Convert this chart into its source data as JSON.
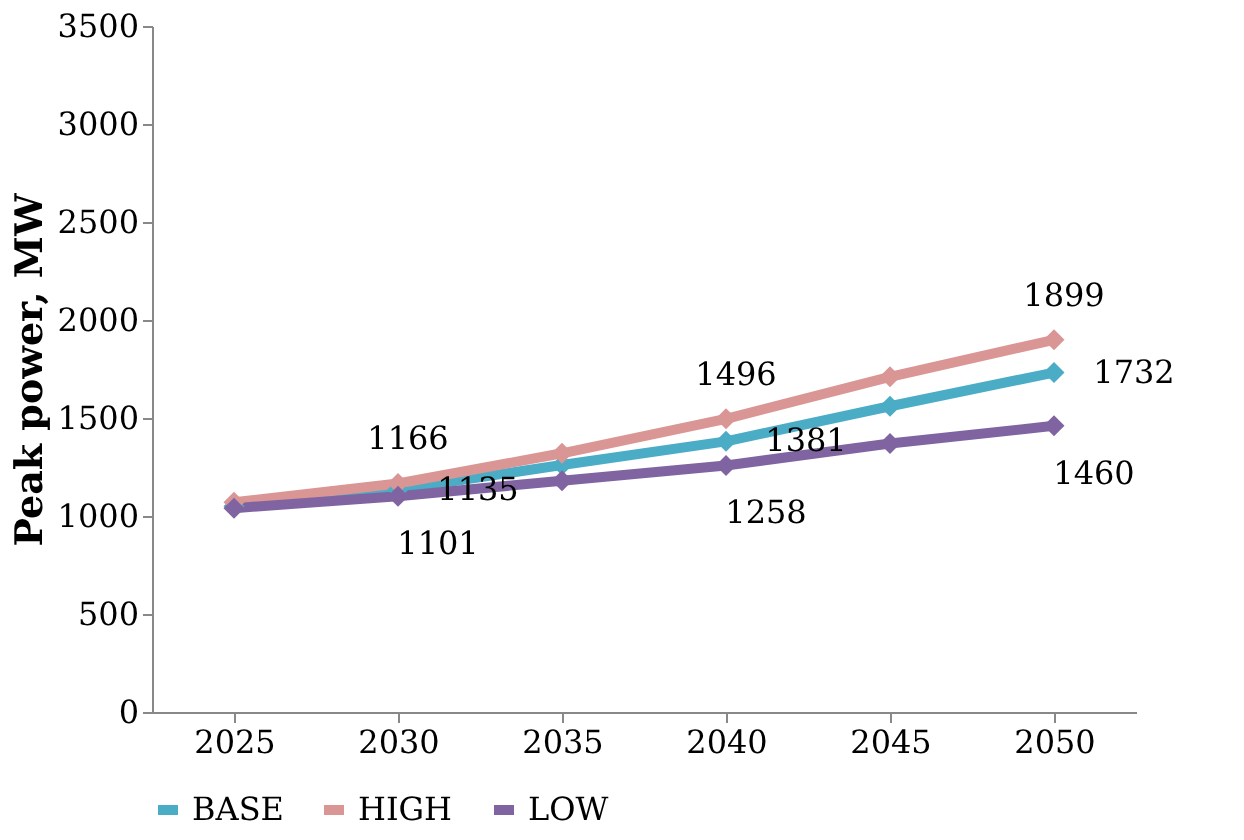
{
  "chart_data": {
    "type": "line",
    "ylabel": "Peak power, MW",
    "categories": [
      "2025",
      "2030",
      "2035",
      "2040",
      "2045",
      "2050"
    ],
    "series": [
      {
        "name": "BASE",
        "color": "#4bacc6",
        "values": [
          1050,
          1135,
          1260,
          1381,
          1560,
          1732
        ],
        "value_labels": [
          null,
          "1135",
          null,
          "1381",
          null,
          "1732"
        ]
      },
      {
        "name": "HIGH",
        "color": "#d99694",
        "values": [
          1070,
          1166,
          1320,
          1496,
          1710,
          1899
        ],
        "value_labels": [
          null,
          "1166",
          null,
          "1496",
          null,
          "1899"
        ]
      },
      {
        "name": "LOW",
        "color": "#8064a2",
        "values": [
          1040,
          1101,
          1180,
          1258,
          1370,
          1460
        ],
        "value_labels": [
          null,
          "1101",
          null,
          "1258",
          null,
          "1460"
        ]
      }
    ],
    "ylim": [
      0,
      3500
    ],
    "yticks": [
      0,
      500,
      1000,
      1500,
      2000,
      2500,
      3000,
      3500
    ],
    "grid": false,
    "legend": "bottom",
    "marker": "diamond",
    "line_style": "solid"
  }
}
